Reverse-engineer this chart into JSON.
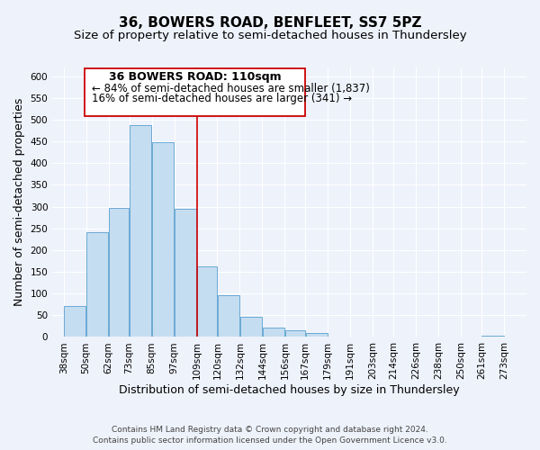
{
  "title": "36, BOWERS ROAD, BENFLEET, SS7 5PZ",
  "subtitle": "Size of property relative to semi-detached houses in Thundersley",
  "xlabel": "Distribution of semi-detached houses by size in Thundersley",
  "ylabel": "Number of semi-detached properties",
  "footer_line1": "Contains HM Land Registry data © Crown copyright and database right 2024.",
  "footer_line2": "Contains public sector information licensed under the Open Government Licence v3.0.",
  "annotation_title": "36 BOWERS ROAD: 110sqm",
  "annotation_line1": "← 84% of semi-detached houses are smaller (1,837)",
  "annotation_line2": "16% of semi-detached houses are larger (341) →",
  "bar_left_edges": [
    38,
    50,
    62,
    73,
    85,
    97,
    109,
    120,
    132,
    144,
    156,
    167,
    179,
    191,
    203,
    214,
    226,
    238,
    250,
    261
  ],
  "bar_widths": [
    12,
    12,
    11,
    12,
    12,
    12,
    11,
    12,
    12,
    12,
    11,
    12,
    12,
    12,
    11,
    12,
    12,
    12,
    11,
    12
  ],
  "bar_heights": [
    72,
    241,
    296,
    487,
    449,
    295,
    162,
    96,
    46,
    22,
    16,
    9,
    0,
    0,
    0,
    0,
    0,
    0,
    0,
    2
  ],
  "tick_labels": [
    "38sqm",
    "50sqm",
    "62sqm",
    "73sqm",
    "85sqm",
    "97sqm",
    "109sqm",
    "120sqm",
    "132sqm",
    "144sqm",
    "156sqm",
    "167sqm",
    "179sqm",
    "191sqm",
    "203sqm",
    "214sqm",
    "226sqm",
    "238sqm",
    "250sqm",
    "261sqm",
    "273sqm"
  ],
  "tick_positions": [
    38,
    50,
    62,
    73,
    85,
    97,
    109,
    120,
    132,
    144,
    156,
    167,
    179,
    191,
    203,
    214,
    226,
    238,
    250,
    261,
    273
  ],
  "bar_color": "#c5ddf0",
  "bar_edge_color": "#6aaad4",
  "vline_x": 109,
  "vline_color": "#cc0000",
  "xlim": [
    32,
    285
  ],
  "ylim": [
    0,
    620
  ],
  "yticks": [
    0,
    50,
    100,
    150,
    200,
    250,
    300,
    350,
    400,
    450,
    500,
    550,
    600
  ],
  "background_color": "#eef2fb",
  "plot_bg_color": "#eef2fb",
  "annotation_box_color": "#ffffff",
  "annotation_box_edge": "#cc0000",
  "title_fontsize": 11,
  "subtitle_fontsize": 9.5,
  "axis_label_fontsize": 9,
  "tick_fontsize": 7.5,
  "annotation_title_fontsize": 9,
  "annotation_text_fontsize": 8.5,
  "footer_fontsize": 6.5,
  "grid_color": "#ffffff"
}
